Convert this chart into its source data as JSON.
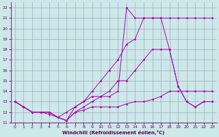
{
  "xlabel": "Windchill (Refroidissement éolien,°C)",
  "xlim": [
    -0.5,
    23.5
  ],
  "ylim": [
    11,
    22.5
  ],
  "xticks": [
    0,
    1,
    2,
    3,
    4,
    5,
    6,
    7,
    8,
    9,
    10,
    11,
    12,
    13,
    14,
    15,
    16,
    17,
    18,
    19,
    20,
    21,
    22,
    23
  ],
  "yticks": [
    11,
    12,
    13,
    14,
    15,
    16,
    17,
    18,
    19,
    20,
    21,
    22
  ],
  "background_color": "#cce8e8",
  "line_color": "#aa00aa",
  "grid_color": "#9999bb",
  "line1_x": [
    0,
    1,
    2,
    3,
    4,
    5,
    6,
    7,
    8,
    9,
    10,
    11,
    12,
    13,
    14,
    15,
    16,
    17,
    18,
    19,
    20,
    21,
    22,
    23
  ],
  "line1_y": [
    13,
    12.5,
    12,
    12,
    12,
    11.5,
    11.2,
    12,
    12.2,
    12.5,
    12.5,
    12.5,
    12.5,
    12.8,
    13,
    13,
    13.2,
    13.5,
    14,
    14,
    14,
    14,
    14,
    14
  ],
  "line2_x": [
    0,
    1,
    2,
    3,
    4,
    5,
    6,
    7,
    8,
    9,
    10,
    11,
    12,
    13,
    14,
    15,
    16,
    17,
    18,
    19,
    20,
    21,
    22,
    23
  ],
  "line2_y": [
    13,
    12.5,
    12,
    12,
    12,
    11.5,
    11.2,
    12,
    12.5,
    13,
    13.5,
    14,
    15,
    15,
    16,
    17,
    18,
    18,
    18,
    14.5,
    13,
    12.5,
    13,
    13
  ],
  "line3_x": [
    0,
    1,
    2,
    3,
    4,
    5,
    6,
    7,
    8,
    9,
    10,
    11,
    12,
    13,
    14,
    15,
    16,
    17,
    18,
    19,
    20,
    21,
    22,
    23
  ],
  "line3_y": [
    13,
    12.5,
    12,
    12,
    12,
    11.5,
    11.2,
    12.5,
    13,
    14,
    15,
    16,
    17,
    18.5,
    19,
    21,
    21,
    21,
    18,
    14.5,
    13,
    12.5,
    13,
    13
  ],
  "line4_x": [
    0,
    1,
    2,
    3,
    4,
    5,
    6,
    7,
    8,
    9,
    10,
    11,
    12,
    13,
    14,
    15,
    16,
    17,
    18,
    19,
    20,
    21,
    22,
    23
  ],
  "line4_y": [
    13,
    12.5,
    12,
    12,
    11.8,
    11.5,
    12,
    12.5,
    13,
    13.5,
    13.5,
    13.5,
    14,
    22,
    21,
    21,
    21,
    21,
    21,
    21,
    21,
    21,
    21,
    21
  ]
}
